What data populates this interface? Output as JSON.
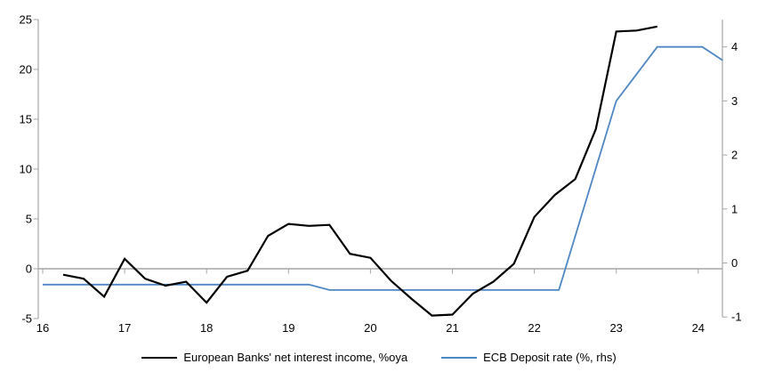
{
  "colors": {
    "background": "#ffffff",
    "axis_gray": "#a6a6a6",
    "text": "#000000",
    "nii_line": "#000000",
    "ecb_line": "#4e87c3"
  },
  "chart_data": {
    "type": "line",
    "title": "",
    "grid": "zero-line-only",
    "legend_position": "bottom",
    "x_axis": {
      "ticks": [
        16,
        17,
        18,
        19,
        20,
        21,
        22,
        23,
        24
      ],
      "range": [
        16,
        24.45
      ]
    },
    "y_axis_left": {
      "ticks": [
        25,
        20,
        15,
        10,
        5,
        0,
        -5
      ],
      "range": [
        -5.3,
        25
      ]
    },
    "y_axis_right": {
      "ticks": [
        4,
        3,
        2,
        1,
        0,
        -1
      ],
      "range": [
        -1.05,
        4.5
      ]
    },
    "series": [
      {
        "name": "European Banks' net interest income, %oya",
        "axis": "left",
        "color": "#000000",
        "frequency": "quarterly",
        "x": [
          16.25,
          16.5,
          16.75,
          17.0,
          17.25,
          17.5,
          17.75,
          18.0,
          18.25,
          18.5,
          18.75,
          19.0,
          19.25,
          19.5,
          19.75,
          20.0,
          20.25,
          20.5,
          20.75,
          21.0,
          21.25,
          21.5,
          21.75,
          22.0,
          22.25,
          22.5,
          22.75,
          23.0,
          23.25,
          23.5
        ],
        "values": [
          -0.6,
          -1.0,
          -2.8,
          1.0,
          -1.0,
          -1.7,
          -1.3,
          -3.4,
          -0.8,
          -0.2,
          3.3,
          4.5,
          4.3,
          4.4,
          1.5,
          1.1,
          -1.2,
          -3.0,
          -4.7,
          -4.6,
          -2.5,
          -1.3,
          0.5,
          5.2,
          7.4,
          9.0,
          14.0,
          23.8,
          23.9,
          24.3
        ]
      },
      {
        "name": "ECB Deposit rate (%, rhs)",
        "axis": "right",
        "color": "#4e87c3",
        "x": [
          16.0,
          19.25,
          19.5,
          22.3,
          23.0,
          23.5,
          24.05,
          24.3
        ],
        "values": [
          -0.4,
          -0.4,
          -0.5,
          -0.5,
          3.0,
          4.0,
          4.0,
          3.75
        ]
      }
    ]
  }
}
